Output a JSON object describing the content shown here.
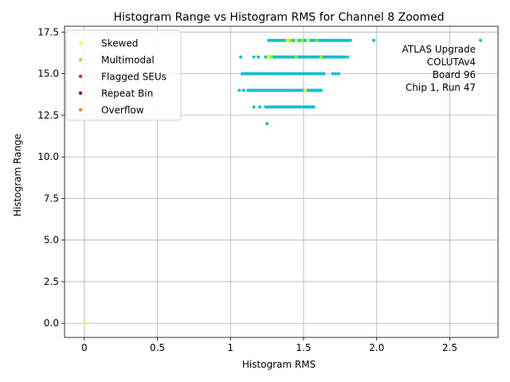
{
  "chart_data": {
    "type": "scatter",
    "title": "Histogram Range vs Histogram RMS for Channel 8 Zoomed",
    "xlabel": "Histogram RMS",
    "ylabel": "Histogram Range",
    "xlim": [
      -0.135,
      2.83
    ],
    "ylim": [
      -0.85,
      17.85
    ],
    "xticks": [
      0,
      0.5,
      1,
      1.5,
      2,
      2.5
    ],
    "xtick_labels": [
      "0",
      "0.5",
      "1",
      "1.5",
      "2.0",
      "2.5"
    ],
    "yticks": [
      0,
      2.5,
      5,
      7.5,
      10,
      12.5,
      15,
      17.5
    ],
    "ytick_labels": [
      "0.0",
      "2.5",
      "5.0",
      "7.5",
      "10.0",
      "12.5",
      "15.0",
      "17.5"
    ],
    "grid": true,
    "legend_position": "top-left",
    "annotation": [
      "ATLAS Upgrade",
      "COLUTAv4",
      "Board 96",
      "Chip 1, Run 47"
    ],
    "colors": {
      "main": "#17becf",
      "Skewed": "#ffff00",
      "Multimodal": "#7fff00",
      "Flagged SEUs": "#d62728",
      "Repeat Bin": "#800080",
      "Overflow": "#ff7f0e"
    },
    "legend": [
      "Skewed",
      "Multimodal",
      "Flagged SEUs",
      "Repeat Bin",
      "Overflow"
    ],
    "series": [
      {
        "category": "main",
        "bands": [
          {
            "y": 17,
            "x_from": 1.26,
            "x_to": 1.82,
            "step": 0.01
          },
          {
            "y": 16,
            "x_from": 1.24,
            "x_to": 1.78,
            "step": 0.01
          },
          {
            "y": 15,
            "x_from": 1.08,
            "x_to": 1.64,
            "step": 0.01
          },
          {
            "y": 14,
            "x_from": 1.13,
            "x_to": 1.62,
            "step": 0.01
          },
          {
            "y": 13,
            "x_from": 1.24,
            "x_to": 1.57,
            "step": 0.01
          }
        ],
        "points": [
          [
            1.98,
            17
          ],
          [
            2.71,
            17
          ],
          [
            1.07,
            16
          ],
          [
            1.16,
            16
          ],
          [
            1.19,
            16
          ],
          [
            1.8,
            16
          ],
          [
            1.12,
            15
          ],
          [
            1.15,
            15
          ],
          [
            1.19,
            15
          ],
          [
            1.21,
            15
          ],
          [
            1.7,
            15
          ],
          [
            1.72,
            15
          ],
          [
            1.74,
            15
          ],
          [
            1.06,
            14
          ],
          [
            1.09,
            14
          ],
          [
            1.12,
            14
          ],
          [
            1.16,
            13
          ],
          [
            1.2,
            13
          ],
          [
            1.25,
            12
          ]
        ]
      },
      {
        "category": "Skewed",
        "points": [
          [
            0.0,
            0.0
          ],
          [
            1.39,
            17
          ],
          [
            1.45,
            17
          ],
          [
            1.53,
            17
          ],
          [
            1.26,
            16
          ],
          [
            1.51,
            14
          ]
        ]
      },
      {
        "category": "Multimodal",
        "points": [
          [
            1.41,
            17
          ],
          [
            1.49,
            17
          ],
          [
            1.59,
            17
          ],
          [
            1.28,
            16
          ],
          [
            1.45,
            16
          ],
          [
            1.62,
            16
          ]
        ]
      }
    ]
  }
}
